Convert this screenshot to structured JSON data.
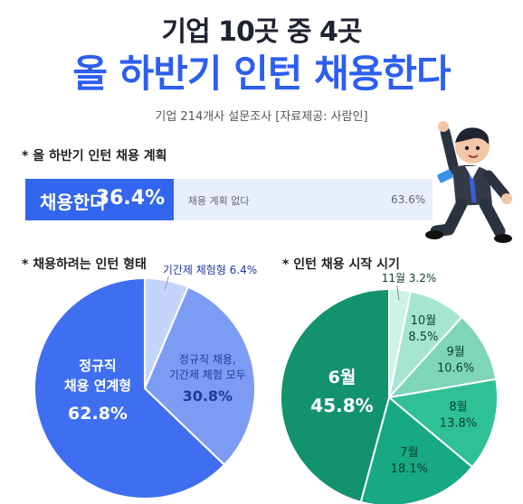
{
  "header": {
    "title_line1": "기업 10곳 중 4곳",
    "title_line2": "올 하반기 인턴 채용한다",
    "source": "기업 214개사 설문조사 [자료제공: 사람인]"
  },
  "sections": {
    "plan": "* 올 하반기 인턴 채용 계획",
    "type": "* 채용하려는 인턴 형태",
    "start": "* 인턴 채용 시작 시기"
  },
  "colors": {
    "brand_blue": "#3366ee",
    "light_blue_bg": "#e8eefc",
    "green_dark": "#12936e"
  },
  "chart_data": [
    {
      "type": "bar",
      "categories": [
        "채용한다",
        "채용 계획 없다"
      ],
      "values": [
        36.4,
        63.6
      ],
      "labels": [
        "36.4%",
        "63.6%"
      ]
    },
    {
      "type": "pie",
      "categories": [
        "정규직 채용 연계형",
        "정규직 채용, 기간제 체험 모두",
        "기간제 체험형"
      ],
      "values": [
        62.8,
        30.8,
        6.4
      ],
      "labels": [
        "62.8%",
        "30.8%",
        "6.4%"
      ],
      "colors": [
        "#3f6ff0",
        "#7c9cf4",
        "#c5d4fa"
      ]
    },
    {
      "type": "pie",
      "categories": [
        "6월",
        "7월",
        "8월",
        "9월",
        "10월",
        "11월"
      ],
      "values": [
        45.8,
        18.1,
        13.8,
        10.6,
        8.5,
        3.2
      ],
      "labels": [
        "45.8%",
        "18.1%",
        "13.8%",
        "10.6%",
        "8.5%",
        "3.2%"
      ],
      "colors": [
        "#12936e",
        "#17a981",
        "#2fc193",
        "#7dd6ba",
        "#a6e5d2",
        "#cdf3e6"
      ]
    }
  ]
}
